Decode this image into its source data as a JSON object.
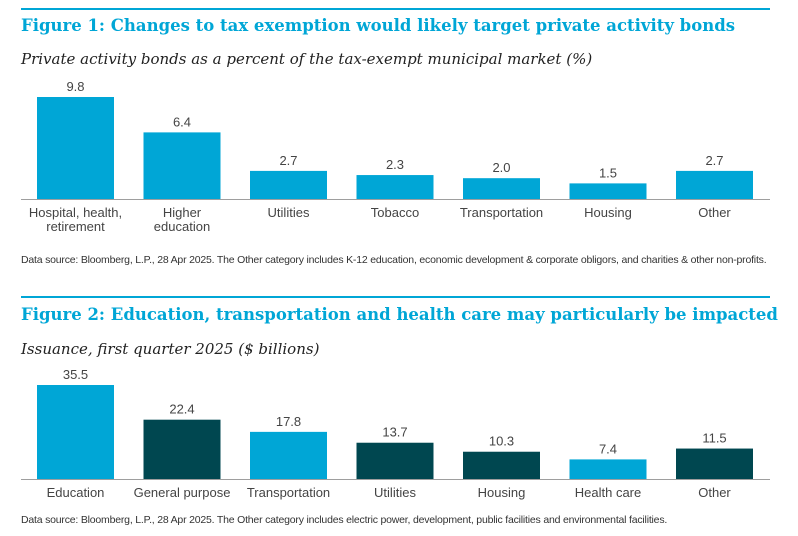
{
  "colors": {
    "accent": "#00a6d6",
    "bar_light": "#00a6d6",
    "bar_dark": "#004750",
    "axis": "#9e9e9e"
  },
  "figure1": {
    "title": "Figure 1: Changes to tax exemption would likely target private activity bonds",
    "subtitle": "Private activity bonds as a percent of the tax-exempt municipal market (%)",
    "source": "Data source: Bloomberg, L.P., 28 Apr 2025. The Other category includes K-12 education, economic development & corporate obligors, and charities & other non-profits."
  },
  "figure2": {
    "title": "Figure 2: Education, transportation and health care may particularly be impacted",
    "subtitle": "Issuance, first quarter 2025 ($ billions)",
    "source": "Data source: Bloomberg, L.P., 28 Apr 2025. The Other category includes electric power, development, public facilities and environmental facilities."
  },
  "chart_data": [
    {
      "type": "bar",
      "title": "Figure 1: Changes to tax exemption would likely target private activity bonds",
      "subtitle": "Private activity bonds as a percent of the tax-exempt municipal market (%)",
      "categories": [
        [
          "Hospital, health,",
          "retirement"
        ],
        [
          "Higher",
          "education"
        ],
        [
          "Utilities"
        ],
        [
          "Tobacco"
        ],
        [
          "Transportation"
        ],
        [
          "Housing"
        ],
        [
          "Other"
        ]
      ],
      "values": [
        9.8,
        6.4,
        2.7,
        2.3,
        2.0,
        1.5,
        2.7
      ],
      "value_labels": [
        "9.8",
        "6.4",
        "2.7",
        "2.3",
        "2.0",
        "1.5",
        "2.7"
      ],
      "bar_colors": [
        "#00a6d6",
        "#00a6d6",
        "#00a6d6",
        "#00a6d6",
        "#00a6d6",
        "#00a6d6",
        "#00a6d6"
      ],
      "ylim": [
        0,
        9.8
      ],
      "grid": false,
      "legend": "none"
    },
    {
      "type": "bar",
      "title": "Figure 2: Education, transportation and health care may particularly be impacted",
      "subtitle": "Issuance, first quarter 2025 ($ billions)",
      "categories": [
        [
          "Education"
        ],
        [
          "General purpose"
        ],
        [
          "Transportation"
        ],
        [
          "Utilities"
        ],
        [
          "Housing"
        ],
        [
          "Health care"
        ],
        [
          "Other"
        ]
      ],
      "values": [
        35.5,
        22.4,
        17.8,
        13.7,
        10.3,
        7.4,
        11.5
      ],
      "value_labels": [
        "35.5",
        "22.4",
        "17.8",
        "13.7",
        "10.3",
        "7.4",
        "11.5"
      ],
      "bar_colors": [
        "#00a6d6",
        "#004750",
        "#00a6d6",
        "#004750",
        "#004750",
        "#00a6d6",
        "#004750"
      ],
      "ylim": [
        0,
        35.5
      ],
      "grid": false,
      "legend": "none"
    }
  ]
}
